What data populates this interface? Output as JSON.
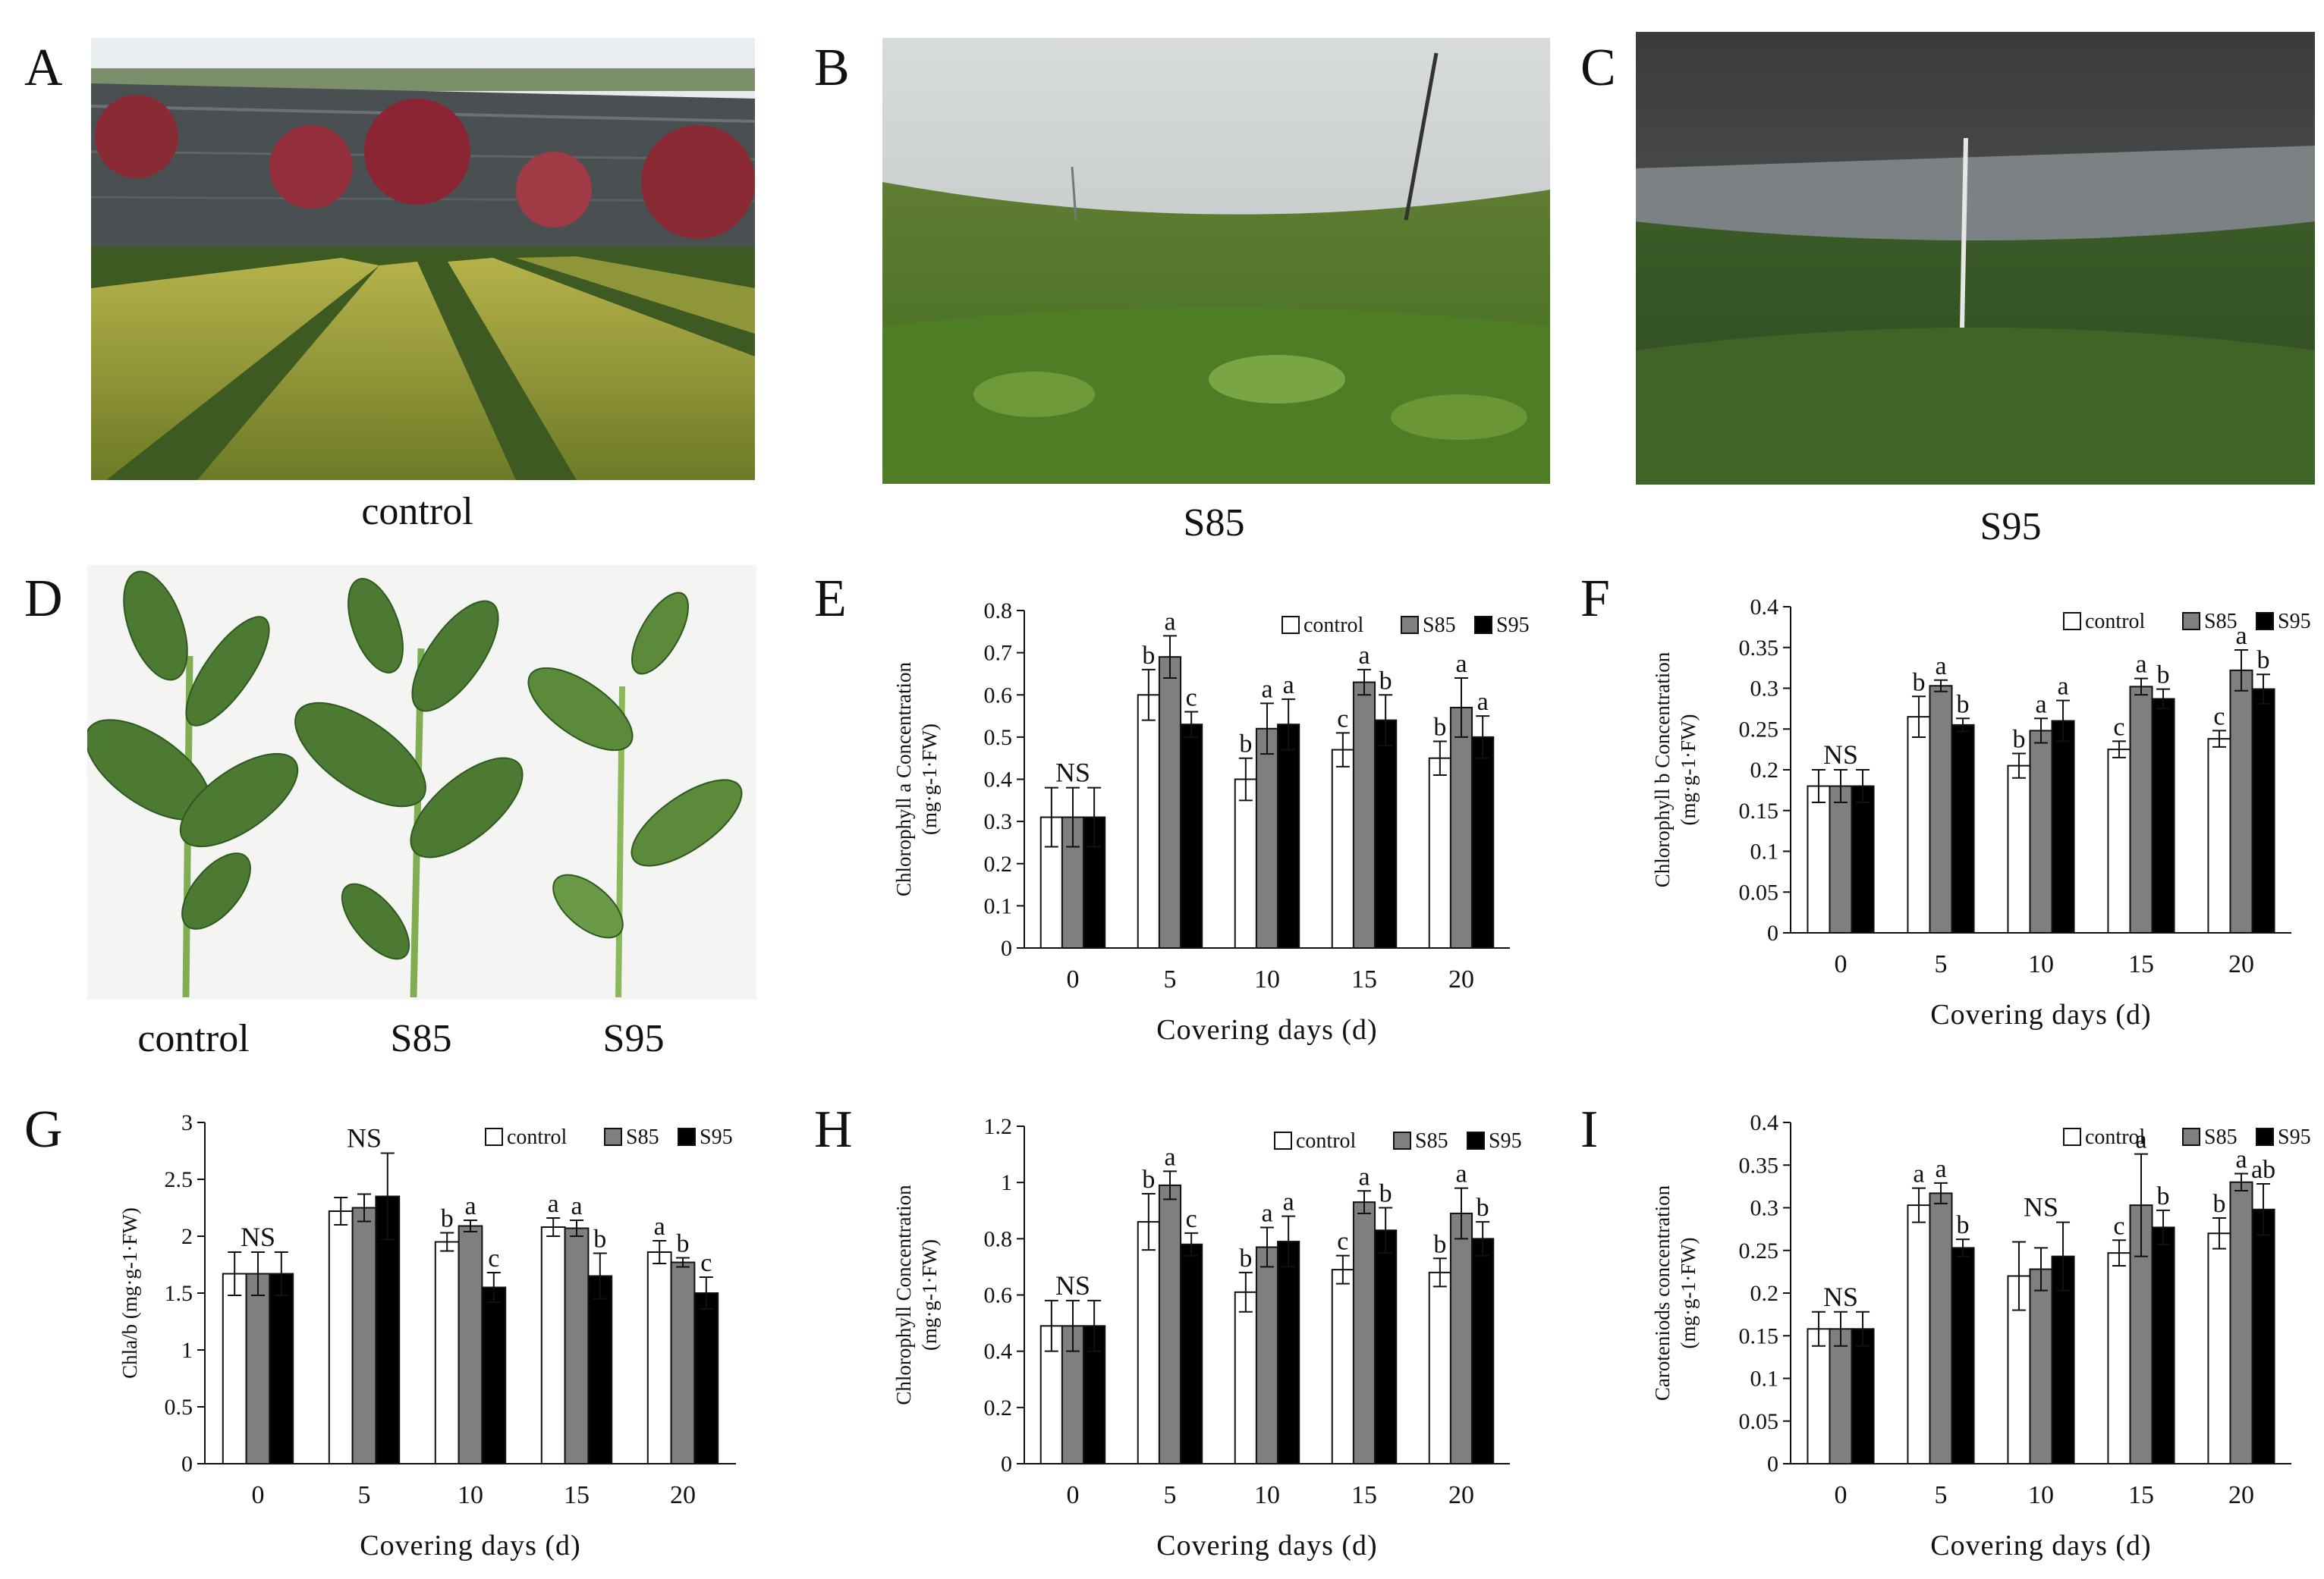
{
  "panel_letters": [
    "A",
    "B",
    "C",
    "D",
    "E",
    "F",
    "G",
    "H",
    "I"
  ],
  "photo_captions": {
    "A": "control",
    "B": "S85",
    "C": "S95",
    "D1": "control",
    "D2": "S85",
    "D3": "S95"
  },
  "colors": {
    "control": "#ffffff",
    "S85": "#7f7f7f",
    "S95": "#000000"
  },
  "chart_data": [
    {
      "panel": "E",
      "type": "bar",
      "categories": [
        "0",
        "5",
        "10",
        "15",
        "20"
      ],
      "xlabel": "Covering days (d)",
      "ylabel": [
        "Chlorophyll a Concentration",
        "(mg·g-1·FW)"
      ],
      "ylim": [
        0,
        0.8
      ],
      "ytick_step": 0.1,
      "yticks": [
        "0",
        "0.1",
        "0.2",
        "0.3",
        "0.4",
        "0.5",
        "0.6",
        "0.7",
        "0.8"
      ],
      "legend_position": "top-right",
      "series": [
        {
          "name": "control",
          "values": [
            0.31,
            0.6,
            0.4,
            0.47,
            0.45
          ],
          "errors": [
            0.07,
            0.06,
            0.05,
            0.04,
            0.04
          ],
          "labels": [
            "",
            "b",
            "b",
            "c",
            "b"
          ]
        },
        {
          "name": "S85",
          "values": [
            0.31,
            0.69,
            0.52,
            0.63,
            0.57
          ],
          "errors": [
            0.07,
            0.05,
            0.06,
            0.03,
            0.07
          ],
          "labels": [
            "",
            "a",
            "a",
            "a",
            "a"
          ]
        },
        {
          "name": "S95",
          "values": [
            0.31,
            0.53,
            0.53,
            0.54,
            0.5
          ],
          "errors": [
            0.07,
            0.03,
            0.06,
            0.06,
            0.05
          ],
          "labels": [
            "",
            "c",
            "a",
            "b",
            "a"
          ]
        }
      ],
      "group_labels": [
        "NS",
        "",
        "",
        "",
        ""
      ]
    },
    {
      "panel": "F",
      "type": "bar",
      "categories": [
        "0",
        "5",
        "10",
        "15",
        "20"
      ],
      "xlabel": "Covering days (d)",
      "ylabel": [
        "Chlorophyll b Concentration",
        "(mg·g-1·FW)"
      ],
      "ylim": [
        0,
        0.4
      ],
      "ytick_step": 0.05,
      "yticks": [
        "0",
        "0.05",
        "0.1",
        "0.15",
        "0.2",
        "0.25",
        "0.3",
        "0.35",
        "0.4"
      ],
      "legend_position": "top-right",
      "series": [
        {
          "name": "control",
          "values": [
            0.18,
            0.265,
            0.205,
            0.225,
            0.238
          ],
          "errors": [
            0.02,
            0.025,
            0.015,
            0.01,
            0.01
          ],
          "labels": [
            "",
            "b",
            "b",
            "c",
            "c"
          ]
        },
        {
          "name": "S85",
          "values": [
            0.18,
            0.303,
            0.248,
            0.302,
            0.322
          ],
          "errors": [
            0.02,
            0.007,
            0.015,
            0.01,
            0.025
          ],
          "labels": [
            "",
            "a",
            "a",
            "a",
            "a"
          ]
        },
        {
          "name": "S95",
          "values": [
            0.18,
            0.255,
            0.26,
            0.287,
            0.299
          ],
          "errors": [
            0.02,
            0.008,
            0.025,
            0.012,
            0.018
          ],
          "labels": [
            "",
            "b",
            "a",
            "b",
            "b"
          ]
        }
      ],
      "group_labels": [
        "NS",
        "",
        "",
        "",
        ""
      ]
    },
    {
      "panel": "G",
      "type": "bar",
      "categories": [
        "0",
        "5",
        "10",
        "15",
        "20"
      ],
      "xlabel": "Covering days (d)",
      "ylabel": [
        "Chla/b (mg·g-1·FW)"
      ],
      "ylim": [
        0,
        3
      ],
      "ytick_step": 0.5,
      "yticks": [
        "0",
        "0.5",
        "1",
        "1.5",
        "2",
        "2.5",
        "3"
      ],
      "legend_position": "top-right",
      "series": [
        {
          "name": "control",
          "values": [
            1.67,
            2.22,
            1.95,
            2.08,
            1.86
          ],
          "errors": [
            0.19,
            0.12,
            0.08,
            0.08,
            0.1
          ],
          "labels": [
            "",
            "",
            "b",
            "a",
            "a"
          ]
        },
        {
          "name": "S85",
          "values": [
            1.67,
            2.25,
            2.09,
            2.07,
            1.77
          ],
          "errors": [
            0.19,
            0.12,
            0.05,
            0.07,
            0.04
          ],
          "labels": [
            "",
            "",
            "a",
            "a",
            "b"
          ]
        },
        {
          "name": "S95",
          "values": [
            1.67,
            2.35,
            1.55,
            1.65,
            1.5
          ],
          "errors": [
            0.19,
            0.38,
            0.13,
            0.2,
            0.14
          ],
          "labels": [
            "",
            "",
            "c",
            "b",
            "c"
          ]
        }
      ],
      "group_labels": [
        "NS",
        "NS",
        "",
        "",
        ""
      ]
    },
    {
      "panel": "H",
      "type": "bar",
      "categories": [
        "0",
        "5",
        "10",
        "15",
        "20"
      ],
      "xlabel": "Covering days (d)",
      "ylabel": [
        "Chlorophyll Concentration",
        "(mg·g-1·FW)"
      ],
      "ylim": [
        0,
        1.2
      ],
      "ytick_step": 0.2,
      "yticks": [
        "0",
        "0.2",
        "0.4",
        "0.6",
        "0.8",
        "1",
        "1.2"
      ],
      "legend_position": "top-right",
      "series": [
        {
          "name": "control",
          "values": [
            0.49,
            0.86,
            0.61,
            0.69,
            0.68
          ],
          "errors": [
            0.09,
            0.1,
            0.07,
            0.05,
            0.05
          ],
          "labels": [
            "",
            "b",
            "b",
            "c",
            "b"
          ]
        },
        {
          "name": "S85",
          "values": [
            0.49,
            0.99,
            0.77,
            0.93,
            0.89
          ],
          "errors": [
            0.09,
            0.05,
            0.07,
            0.04,
            0.09
          ],
          "labels": [
            "",
            "a",
            "a",
            "a",
            "a"
          ]
        },
        {
          "name": "S95",
          "values": [
            0.49,
            0.78,
            0.79,
            0.83,
            0.8
          ],
          "errors": [
            0.09,
            0.04,
            0.09,
            0.08,
            0.06
          ],
          "labels": [
            "",
            "c",
            "a",
            "b",
            "b"
          ]
        }
      ],
      "group_labels": [
        "NS",
        "",
        "",
        "",
        ""
      ]
    },
    {
      "panel": "I",
      "type": "bar",
      "categories": [
        "0",
        "5",
        "10",
        "15",
        "20"
      ],
      "xlabel": "Covering days (d)",
      "ylabel": [
        "Caroteniods concentration",
        "(mg·g-1·FW)"
      ],
      "ylim": [
        0,
        0.4
      ],
      "ytick_step": 0.05,
      "yticks": [
        "0",
        "0.05",
        "0.1",
        "0.15",
        "0.2",
        "0.25",
        "0.3",
        "0.35",
        "0.4"
      ],
      "legend_position": "top-right",
      "series": [
        {
          "name": "control",
          "values": [
            0.158,
            0.303,
            0.22,
            0.247,
            0.27
          ],
          "errors": [
            0.02,
            0.02,
            0.04,
            0.015,
            0.018
          ],
          "labels": [
            "",
            "a",
            "",
            "c",
            "b"
          ]
        },
        {
          "name": "S85",
          "values": [
            0.158,
            0.317,
            0.228,
            0.303,
            0.33
          ],
          "errors": [
            0.02,
            0.012,
            0.025,
            0.06,
            0.01
          ],
          "labels": [
            "",
            "a",
            "",
            "a",
            "a"
          ]
        },
        {
          "name": "S95",
          "values": [
            0.158,
            0.253,
            0.243,
            0.277,
            0.298
          ],
          "errors": [
            0.02,
            0.01,
            0.04,
            0.02,
            0.03
          ],
          "labels": [
            "",
            "b",
            "",
            "b",
            "ab"
          ]
        }
      ],
      "group_labels": [
        "NS",
        "",
        "NS",
        "",
        ""
      ]
    }
  ]
}
